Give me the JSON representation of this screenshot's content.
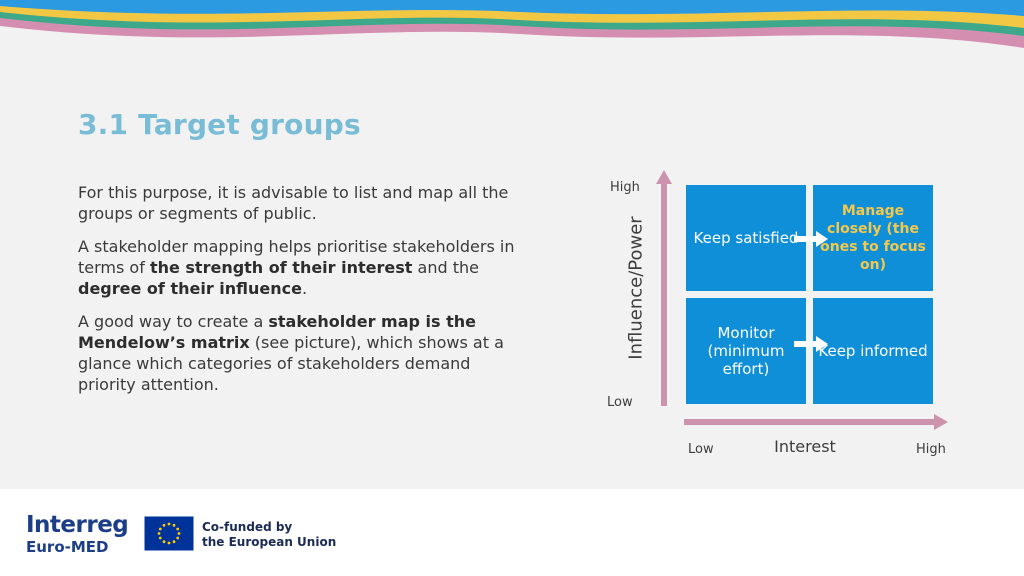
{
  "title": "3.1 Target groups",
  "paragraphs": {
    "p1": "For this purpose, it is advisable to list and map all the groups or segments of public.",
    "p2_a": "A stakeholder mapping helps prioritise stakeholders in terms of ",
    "p2_b": "the strength of their interest",
    "p2_c": " and the ",
    "p2_d": "degree of their influence",
    "p2_e": ".",
    "p3_a": "A good way to create a ",
    "p3_b": "stakeholder map is the Mendelow’s matrix",
    "p3_c": " (see picture), which shows at a glance which categories of stakeholders demand priority attention."
  },
  "matrix": {
    "y_axis_title": "Influence/Power",
    "x_axis_title": "Interest",
    "y_high": "High",
    "y_low": "Low",
    "x_low": "Low",
    "x_high": "High",
    "quadrants": {
      "top_left": "Keep satisfied",
      "top_right": "Manage closely (the ones to focus on)",
      "bottom_left": "Monitor (minimum effort)",
      "bottom_right": "Keep informed"
    }
  },
  "footer": {
    "logo_line1": "Interreg",
    "logo_line2": "Euro-MED",
    "eu_line1": "Co-funded by",
    "eu_line2": "the European Union"
  },
  "colors": {
    "title": "#78bcd6",
    "quadrant": "#0f8fd8",
    "highlight_text": "#f4c84b",
    "axis": "#cc93ad",
    "wave_blue": "#2b9ae0",
    "wave_yellow": "#f2c744",
    "wave_green": "#3ea88b",
    "wave_pink": "#d48fb0"
  }
}
